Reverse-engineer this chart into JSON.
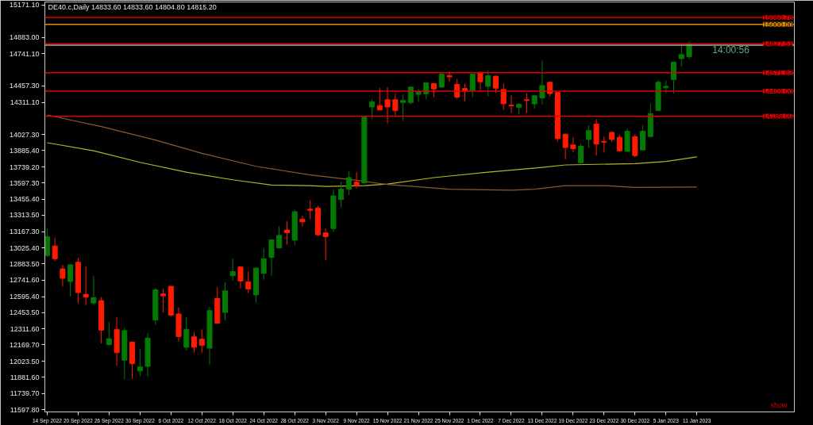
{
  "chart_data": {
    "type": "candlestick",
    "title": "DE40.c,Daily  14833.60 14833.60 14804.80 14815.20",
    "annotations": [
      "14:00:56",
      "show"
    ],
    "categories": [
      "14 Sep 2022",
      null,
      null,
      null,
      "20 Sep 2022",
      null,
      null,
      null,
      "26 Sep 2022",
      null,
      null,
      null,
      "30 Sep 2022",
      null,
      null,
      null,
      "6 Oct 2022",
      null,
      null,
      null,
      "12 Oct 2022",
      null,
      null,
      null,
      "18 Oct 2022",
      null,
      null,
      null,
      "24 Oct 2022",
      null,
      null,
      null,
      "28 Oct 2022",
      null,
      null,
      null,
      "3 Nov 2022",
      null,
      null,
      null,
      "9 Nov 2022",
      null,
      null,
      null,
      "15 Nov 2022",
      null,
      null,
      null,
      "21 Nov 2022",
      null,
      null,
      null,
      "25 Nov 2022",
      null,
      null,
      null,
      "1 Dec 2022",
      null,
      null,
      null,
      "7 Dec 2022",
      null,
      null,
      null,
      "13 Dec 2022",
      null,
      null,
      null,
      "19 Dec 2022",
      null,
      null,
      null,
      "23 Dec 2022",
      null,
      null,
      null,
      "30 Dec 2022",
      null,
      null,
      null,
      "5 Jan 2023",
      null,
      null,
      null,
      "11 Jan 2023"
    ],
    "ohlc": [
      [
        12959,
        13196,
        12947,
        13125
      ],
      [
        13042,
        13113,
        12911,
        12930
      ],
      [
        12840,
        12876,
        12686,
        12757
      ],
      [
        12729,
        12880,
        12598,
        12876
      ],
      [
        12899,
        12939,
        12536,
        12631
      ],
      [
        12615,
        12864,
        12520,
        12591
      ],
      [
        12539,
        12781,
        12520,
        12586
      ],
      [
        12560,
        12591,
        12181,
        12299
      ],
      [
        12171,
        12373,
        12165,
        12223
      ],
      [
        12306,
        12413,
        11982,
        12100
      ],
      [
        12034,
        12323,
        11861,
        12295
      ],
      [
        12193,
        12200,
        11868,
        12003
      ],
      [
        11939,
        12136,
        11891,
        11975
      ],
      [
        11979,
        12276,
        11887,
        12228
      ],
      [
        12389,
        12669,
        12347,
        12655
      ],
      [
        12619,
        12662,
        12456,
        12603
      ],
      [
        12686,
        12690,
        12418,
        12432
      ],
      [
        12442,
        12501,
        12200,
        12243
      ],
      [
        12148,
        12413,
        12121,
        12306
      ],
      [
        12240,
        12283,
        12100,
        12148
      ],
      [
        12219,
        12306,
        12100,
        12164
      ],
      [
        12140,
        12503,
        11993,
        12472
      ],
      [
        12579,
        12679,
        12354,
        12361
      ],
      [
        12456,
        12721,
        12389,
        12646
      ],
      [
        12781,
        12935,
        12733,
        12816
      ],
      [
        12857,
        12860,
        12669,
        12733
      ],
      [
        12726,
        12816,
        12627,
        12662
      ],
      [
        12610,
        12850,
        12544,
        12847
      ],
      [
        12800,
        13025,
        12745,
        12928
      ],
      [
        12942,
        13099,
        12781,
        13096
      ],
      [
        13025,
        13219,
        13022,
        13136
      ],
      [
        13184,
        13262,
        13053,
        13160
      ],
      [
        13094,
        13362,
        13049,
        13345
      ],
      [
        13279,
        13310,
        13215,
        13255
      ],
      [
        13367,
        13445,
        13279,
        13357
      ],
      [
        13378,
        13397,
        13132,
        13141
      ],
      [
        13158,
        13196,
        12918,
        13124
      ],
      [
        13196,
        13544,
        13167,
        13485
      ],
      [
        13452,
        13611,
        13385,
        13544
      ],
      [
        13544,
        13701,
        13492,
        13646
      ],
      [
        13606,
        13694,
        13551,
        13575
      ],
      [
        13599,
        14190,
        13595,
        14184
      ],
      [
        14270,
        14339,
        14168,
        14315
      ],
      [
        14282,
        14440,
        14238,
        14244
      ],
      [
        14334,
        14445,
        14120,
        14270
      ],
      [
        14334,
        14386,
        14196,
        14239
      ],
      [
        14310,
        14381,
        14144,
        14327
      ],
      [
        14310,
        14452,
        14293,
        14445
      ],
      [
        14381,
        14429,
        14315,
        14405
      ],
      [
        14386,
        14486,
        14339,
        14483
      ],
      [
        14476,
        14480,
        14357,
        14429
      ],
      [
        14445,
        14566,
        14440,
        14559
      ],
      [
        14547,
        14583,
        14493,
        14535
      ],
      [
        14469,
        14516,
        14341,
        14357
      ],
      [
        14433,
        14476,
        14322,
        14414
      ],
      [
        14414,
        14562,
        14353,
        14559
      ],
      [
        14576,
        14583,
        14417,
        14493
      ],
      [
        14452,
        14590,
        14362,
        14547
      ],
      [
        14542,
        14545,
        14393,
        14436
      ],
      [
        14424,
        14476,
        14244,
        14298
      ],
      [
        14286,
        14376,
        14215,
        14281
      ],
      [
        14267,
        14305,
        14203,
        14293
      ],
      [
        14334,
        14393,
        14215,
        14327
      ],
      [
        14298,
        14372,
        14256,
        14369
      ],
      [
        14350,
        14678,
        14293,
        14459
      ],
      [
        14488,
        14495,
        14362,
        14388
      ],
      [
        14398,
        14401,
        13966,
        13990
      ],
      [
        14030,
        14033,
        13807,
        13912
      ],
      [
        13935,
        14002,
        13871,
        13902
      ],
      [
        13777,
        13947,
        13775,
        13923
      ],
      [
        13983,
        14108,
        13907,
        14061
      ],
      [
        14120,
        14163,
        13840,
        13942
      ],
      [
        13966,
        14007,
        13867,
        13959
      ],
      [
        14045,
        14056,
        13961,
        13983
      ],
      [
        14002,
        14026,
        13876,
        13883
      ],
      [
        13878,
        14078,
        13875,
        14056
      ],
      [
        14007,
        14026,
        13824,
        13841
      ],
      [
        13890,
        14108,
        13888,
        14056
      ],
      [
        14009,
        14298,
        14007,
        14211
      ],
      [
        14239,
        14507,
        14237,
        14488
      ],
      [
        14440,
        14507,
        14393,
        14452
      ],
      [
        14512,
        14668,
        14388,
        14666
      ],
      [
        14697,
        14827,
        14623,
        14732
      ],
      [
        14713,
        14848,
        14694,
        14830
      ],
      null
    ],
    "colors": [
      "#047a04",
      "#ff1a00",
      "#ff1a00",
      "#047a04",
      "#ff1a00",
      "#ff1a00",
      "#047a04",
      "#ff1a00",
      "#047a04",
      "#ff1a00",
      "#047a04",
      "#ff1a00",
      "#047a04",
      "#047a04",
      "#047a04",
      "#ff1a00",
      "#ff1a00",
      "#ff1a00",
      "#047a04",
      "#ff1a00",
      "#ff1a00",
      "#047a04",
      "#ff1a00",
      "#047a04",
      "#047a04",
      "#ff1a00",
      "#ff1a00",
      "#047a04",
      "#047a04",
      "#047a04",
      "#047a04",
      "#ff1a00",
      "#047a04",
      "#ff1a00",
      "#ff1a00",
      "#ff1a00",
      "#ff1a00",
      "#047a04",
      "#047a04",
      "#047a04",
      "#ff1a00",
      "#047a04",
      "#047a04",
      "#ff1a00",
      "#ff1a00",
      "#ff1a00",
      "#047a04",
      "#047a04",
      "#047a04",
      "#047a04",
      "#ff1a00",
      "#047a04",
      "#ff1a00",
      "#ff1a00",
      "#ff1a00",
      "#047a04",
      "#ff1a00",
      "#047a04",
      "#ff1a00",
      "#ff1a00",
      "#ff1a00",
      "#047a04",
      "#ff1a00",
      "#047a04",
      "#047a04",
      "#ff1a00",
      "#ff1a00",
      "#ff1a00",
      "#ff1a00",
      "#047a04",
      "#047a04",
      "#ff1a00",
      "#ff1a00",
      "#ff1a00",
      "#ff1a00",
      "#047a04",
      "#ff1a00",
      "#047a04",
      "#047a04",
      "#047a04",
      "#047a04",
      "#047a04",
      "#047a04",
      "#047a04",
      null
    ],
    "series": [
      {
        "type": "line",
        "color": "#b4b41e",
        "values": [
          13954,
          null,
          null,
          null,
          null,
          null,
          13883,
          null,
          null,
          null,
          null,
          null,
          13781,
          null,
          null,
          null,
          null,
          null,
          13694,
          null,
          null,
          null,
          null,
          null,
          13627,
          null,
          null,
          null,
          null,
          13580,
          null,
          null,
          null,
          null,
          13575,
          null,
          13568,
          null,
          null,
          null,
          null,
          13575,
          null,
          null,
          13589,
          null,
          null,
          null,
          null,
          null,
          13646,
          null,
          null,
          null,
          null,
          null,
          null,
          13694,
          null,
          null,
          null,
          null,
          null,
          null,
          13736,
          null,
          null,
          13758,
          null,
          null,
          null,
          null,
          null,
          null,
          null,
          null,
          13770,
          null,
          null,
          null,
          13789,
          null,
          null,
          null,
          13829
        ]
      },
      {
        "type": "line",
        "color": "#8a5a2e",
        "values": [
          14199,
          null,
          null,
          null,
          null,
          null,
          null,
          14097,
          null,
          null,
          null,
          null,
          null,
          null,
          13978,
          null,
          null,
          null,
          null,
          null,
          13860,
          null,
          null,
          null,
          null,
          null,
          null,
          13746,
          null,
          null,
          null,
          null,
          null,
          null,
          13670,
          null,
          null,
          null,
          null,
          null,
          13622,
          null,
          null,
          null,
          13585,
          null,
          null,
          null,
          null,
          null,
          null,
          null,
          13544,
          null,
          null,
          null,
          null,
          null,
          null,
          null,
          13535,
          null,
          null,
          13544,
          null,
          null,
          null,
          13575,
          null,
          null,
          null,
          null,
          13575,
          null,
          null,
          null,
          13559,
          null,
          null,
          null,
          null,
          null,
          null,
          null,
          13563
        ]
      }
    ],
    "ylim": [
      11577,
      15197
    ],
    "yticks": [
      {
        "value": 15171.1,
        "label": "15171.10"
      },
      {
        "value": 14883.0,
        "label": "14883.00"
      },
      {
        "value": 14741.1,
        "label": "14741.10"
      },
      {
        "value": 14457.3,
        "label": "14457.30"
      },
      {
        "value": 14311.1,
        "label": "14311.10"
      },
      {
        "value": 14027.3,
        "label": "14027.30"
      },
      {
        "value": 13885.4,
        "label": "13885.40"
      },
      {
        "value": 13739.2,
        "label": "13739.20"
      },
      {
        "value": 13597.3,
        "label": "13597.30"
      },
      {
        "value": 13455.4,
        "label": "13455.40"
      },
      {
        "value": 13313.5,
        "label": "13313.50"
      },
      {
        "value": 13167.3,
        "label": "13167.30"
      },
      {
        "value": 13025.4,
        "label": "13025.40"
      },
      {
        "value": 12883.5,
        "label": "12883.50"
      },
      {
        "value": 12741.6,
        "label": "12741.60"
      },
      {
        "value": 12595.4,
        "label": "12595.40"
      },
      {
        "value": 12453.5,
        "label": "12453.50"
      },
      {
        "value": 12311.6,
        "label": "12311.60"
      },
      {
        "value": 12169.7,
        "label": "12169.70"
      },
      {
        "value": 12023.5,
        "label": "12023.50"
      },
      {
        "value": 11881.6,
        "label": "11881.60"
      },
      {
        "value": 11739.7,
        "label": "11739.70"
      },
      {
        "value": 11597.8,
        "label": "11597.80"
      }
    ],
    "ref_lines": [
      {
        "axis": "y",
        "value": 15060.78,
        "label": "15060.78",
        "color": "#e00000"
      },
      {
        "axis": "y",
        "value": 15000.0,
        "label": "15000.00",
        "color": "#e08a00"
      },
      {
        "axis": "y",
        "value": 14815.2,
        "label": null,
        "color": "#a0a0a0"
      },
      {
        "axis": "y",
        "value": 14827.51,
        "label": "14827.51",
        "color": "#e00000"
      },
      {
        "axis": "y",
        "value": 14571.82,
        "label": "14571.82",
        "color": "#e00000"
      },
      {
        "axis": "y",
        "value": 14409.0,
        "label": "14409.00",
        "color": "#e00000"
      },
      {
        "axis": "y",
        "value": 14189.0,
        "label": "14189.00",
        "color": "#e00000"
      }
    ]
  }
}
